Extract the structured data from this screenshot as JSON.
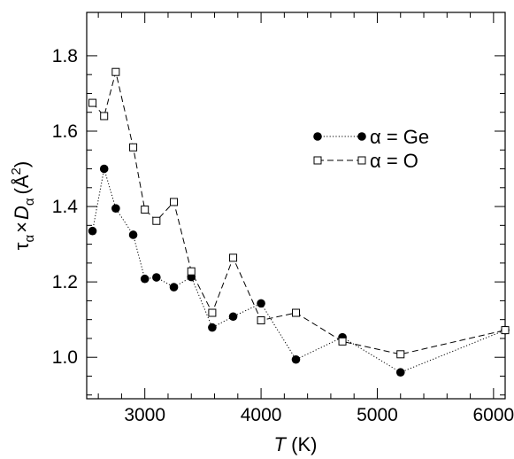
{
  "chart_data": {
    "type": "line",
    "xlabel": "T (K)",
    "xlabel_italic": "T",
    "xlabel_rest": " (K)",
    "ylabel": "τα×Dα (Å2)",
    "xlim": [
      2500,
      6100
    ],
    "ylim": [
      0.89,
      1.915
    ],
    "xticks": [
      3000,
      4000,
      5000,
      6000
    ],
    "xtick_labels": [
      "3000",
      "4000",
      "5000",
      "6000"
    ],
    "yticks": [
      1.0,
      1.2,
      1.4,
      1.6,
      1.8
    ],
    "ytick_labels": [
      "1.0",
      "1.2",
      "1.4",
      "1.6",
      "1.8"
    ],
    "grid": false,
    "legend_position": "upper-right",
    "series": [
      {
        "name": "α = Ge",
        "marker": "filled-circle",
        "line": "dotted",
        "color": "#000000",
        "x": [
          2550,
          2650,
          2750,
          2900,
          3000,
          3100,
          3250,
          3400,
          3580,
          3760,
          4000,
          4300,
          4700,
          5200,
          6100
        ],
        "y": [
          1.335,
          1.5,
          1.395,
          1.325,
          1.208,
          1.212,
          1.186,
          1.213,
          1.079,
          1.108,
          1.143,
          0.994,
          1.053,
          0.96,
          1.072
        ]
      },
      {
        "name": "α = O",
        "marker": "open-square",
        "line": "dashed",
        "color": "#000000",
        "x": [
          2550,
          2650,
          2750,
          2900,
          3000,
          3100,
          3250,
          3400,
          3580,
          3760,
          4000,
          4300,
          4700,
          5200,
          6100
        ],
        "y": [
          1.675,
          1.64,
          1.757,
          1.557,
          1.392,
          1.362,
          1.412,
          1.228,
          1.118,
          1.264,
          1.098,
          1.118,
          1.042,
          1.008,
          1.072
        ]
      }
    ]
  }
}
